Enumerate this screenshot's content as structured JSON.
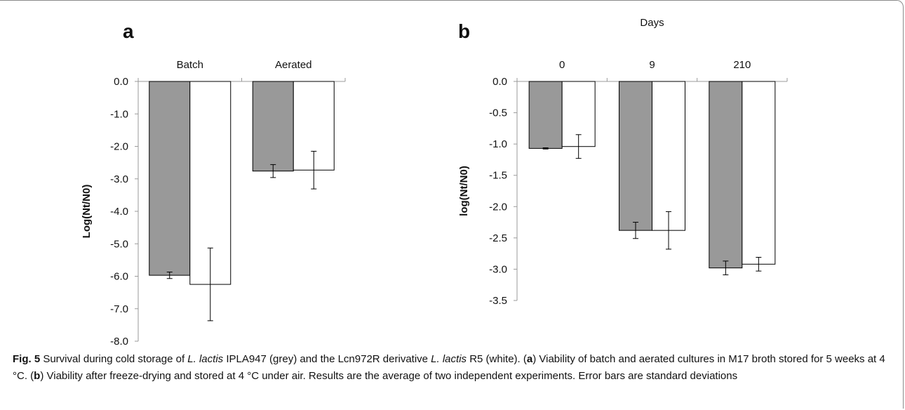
{
  "colors": {
    "series_grey": "#999999",
    "series_white": "#ffffff",
    "edge": "#000000",
    "axis": "#9a9a9a"
  },
  "chart_data": [
    {
      "type": "bar",
      "panel_label": "a",
      "title": "",
      "xlabel": "",
      "ylabel": "Log(Nt/N0)",
      "categories": [
        "Batch",
        "Aerated"
      ],
      "category_axis_position": "top",
      "ylim": [
        -8.0,
        0.0
      ],
      "yticks": [
        0.0,
        -1.0,
        -2.0,
        -3.0,
        -4.0,
        -5.0,
        -6.0,
        -7.0,
        -8.0
      ],
      "tick_format_decimals": 1,
      "grid": false,
      "series": [
        {
          "values": [
            -5.97,
            -2.76
          ],
          "errors": [
            0.1,
            0.2
          ],
          "color": "#999999"
        },
        {
          "values": [
            -6.25,
            -2.73
          ],
          "errors": [
            1.12,
            0.58
          ],
          "color": "#ffffff"
        }
      ]
    },
    {
      "type": "bar",
      "panel_label": "b",
      "title": "",
      "xlabel": "Days",
      "ylabel": "log(Nt/N0)",
      "categories": [
        "0",
        "9",
        "210"
      ],
      "category_axis_position": "top",
      "ylim": [
        -3.5,
        0.0
      ],
      "yticks": [
        0.0,
        -0.5,
        -1.0,
        -1.5,
        -2.0,
        -2.5,
        -3.0,
        -3.5
      ],
      "tick_format_decimals": 1,
      "grid": false,
      "series": [
        {
          "values": [
            -1.07,
            -2.38,
            -2.98
          ],
          "errors": [
            0.01,
            0.13,
            0.11
          ],
          "color": "#999999"
        },
        {
          "values": [
            -1.04,
            -2.38,
            -2.92
          ],
          "errors": [
            0.19,
            0.3,
            0.11
          ],
          "color": "#ffffff"
        }
      ]
    }
  ],
  "caption": {
    "label": "Fig. 5",
    "t1": " Survival during cold storage of ",
    "sp1": "L. lactis",
    "t2": " IPLA947 (grey) and the Lcn972R derivative ",
    "sp2": "L. lactis",
    "t3": " R5 (white). (",
    "pa": "a",
    "t4": ") Viability of batch and aerated cultures in M17 broth stored for 5 weeks at 4 °C. (",
    "pb": "b",
    "t5": ") Viability after freeze-drying and stored at 4 °C under air. Results are the average of two independent experiments. Error bars are standard deviations"
  }
}
